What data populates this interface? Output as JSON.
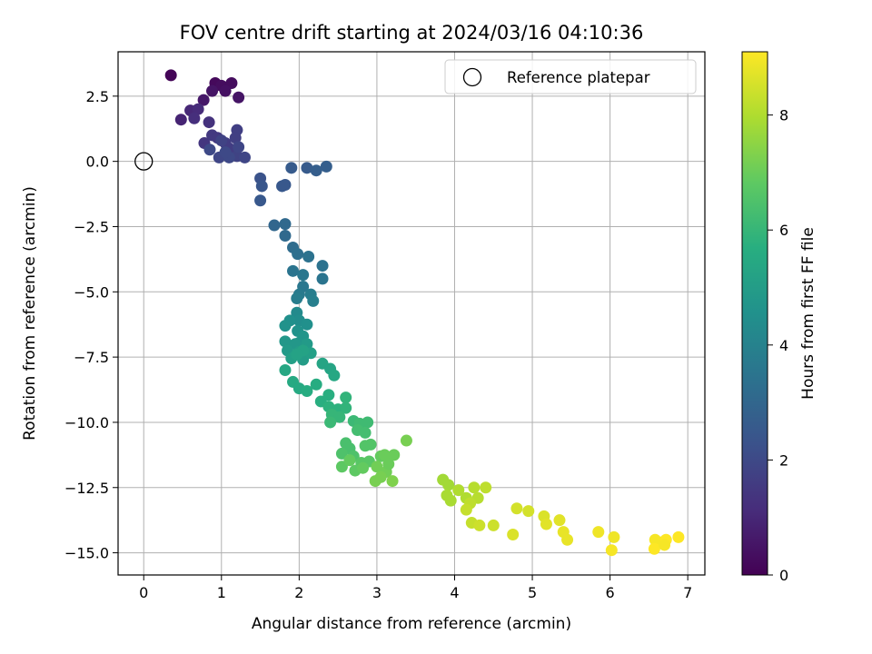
{
  "chart_data": {
    "type": "scatter",
    "title": "FOV centre drift starting at 2024/03/16 04:10:36",
    "xlabel": "Angular distance from reference (arcmin)",
    "ylabel": "Rotation from reference (arcmin)",
    "xlim": [
      -0.33,
      7.22
    ],
    "ylim": [
      -15.85,
      4.2
    ],
    "xticks": [
      0,
      1,
      2,
      3,
      4,
      5,
      6,
      7
    ],
    "xtick_labels": [
      "0",
      "1",
      "2",
      "3",
      "4",
      "5",
      "6",
      "7"
    ],
    "yticks": [
      2.5,
      0.0,
      -2.5,
      -5.0,
      -7.5,
      -10.0,
      -12.5,
      -15.0
    ],
    "ytick_labels": [
      "2.5",
      "0.0",
      "−2.5",
      "−5.0",
      "−7.5",
      "−10.0",
      "−12.5",
      "−15.0"
    ],
    "grid": true,
    "colormap": "viridis",
    "legend": {
      "placement": "upper right",
      "entries": [
        {
          "label": "Reference platepar",
          "marker": "open-circle"
        }
      ]
    },
    "reference_point": {
      "x": 0,
      "y": 0,
      "label": "Reference platepar"
    },
    "colorbar": {
      "label": "Hours from first FF file",
      "range": [
        0,
        9.1
      ],
      "ticks": [
        0,
        2,
        4,
        6,
        8
      ],
      "tick_labels": [
        "0",
        "2",
        "4",
        "6",
        "8"
      ]
    },
    "points": [
      [
        0.35,
        3.3,
        0.1
      ],
      [
        0.92,
        3.0,
        0.2
      ],
      [
        1.0,
        2.9,
        0.3
      ],
      [
        1.13,
        3.0,
        0.3
      ],
      [
        1.05,
        2.7,
        0.4
      ],
      [
        1.22,
        2.45,
        0.5
      ],
      [
        0.88,
        2.7,
        0.5
      ],
      [
        0.77,
        2.35,
        0.6
      ],
      [
        0.48,
        1.6,
        0.9
      ],
      [
        0.6,
        1.95,
        1.0
      ],
      [
        0.7,
        2.0,
        1.1
      ],
      [
        0.65,
        1.65,
        1.2
      ],
      [
        0.84,
        1.5,
        1.3
      ],
      [
        0.78,
        0.7,
        1.4
      ],
      [
        0.88,
        1.0,
        1.5
      ],
      [
        0.95,
        0.9,
        1.5
      ],
      [
        1.05,
        0.7,
        1.6
      ],
      [
        1.1,
        0.5,
        1.6
      ],
      [
        1.2,
        1.2,
        1.7
      ],
      [
        1.18,
        0.9,
        1.7
      ],
      [
        1.2,
        0.2,
        1.8
      ],
      [
        1.3,
        0.15,
        1.9
      ],
      [
        0.97,
        0.15,
        1.9
      ],
      [
        1.1,
        0.15,
        2.0
      ],
      [
        0.85,
        0.45,
        2.0
      ],
      [
        1.0,
        0.8,
        1.8
      ],
      [
        1.22,
        0.55,
        1.9
      ],
      [
        1.05,
        0.35,
        2.0
      ],
      [
        1.5,
        -0.65,
        2.3
      ],
      [
        1.52,
        -0.95,
        2.4
      ],
      [
        1.5,
        -1.5,
        2.5
      ],
      [
        1.78,
        -0.95,
        2.5
      ],
      [
        1.82,
        -0.9,
        2.5
      ],
      [
        1.9,
        -0.25,
        2.6
      ],
      [
        2.1,
        -0.25,
        2.6
      ],
      [
        2.22,
        -0.35,
        2.7
      ],
      [
        2.35,
        -0.2,
        2.7
      ],
      [
        1.68,
        -2.45,
        3.0
      ],
      [
        1.82,
        -2.4,
        3.1
      ],
      [
        1.82,
        -2.85,
        3.1
      ],
      [
        1.92,
        -3.3,
        3.2
      ],
      [
        1.98,
        -3.55,
        3.3
      ],
      [
        2.12,
        -3.65,
        3.4
      ],
      [
        2.3,
        -4.0,
        3.4
      ],
      [
        2.3,
        -4.5,
        3.5
      ],
      [
        1.92,
        -4.2,
        3.5
      ],
      [
        2.05,
        -4.35,
        3.6
      ],
      [
        2.05,
        -4.8,
        3.6
      ],
      [
        2.0,
        -5.1,
        3.7
      ],
      [
        2.15,
        -5.1,
        3.8
      ],
      [
        1.97,
        -5.25,
        3.8
      ],
      [
        2.18,
        -5.35,
        3.9
      ],
      [
        1.97,
        -5.8,
        4.3
      ],
      [
        2.0,
        -6.1,
        4.4
      ],
      [
        2.1,
        -6.25,
        4.5
      ],
      [
        1.88,
        -6.1,
        4.5
      ],
      [
        1.82,
        -6.3,
        4.6
      ],
      [
        1.98,
        -6.5,
        4.6
      ],
      [
        2.05,
        -6.7,
        4.7
      ],
      [
        2.0,
        -6.95,
        4.7
      ],
      [
        1.82,
        -6.9,
        4.8
      ],
      [
        1.95,
        -7.0,
        4.8
      ],
      [
        2.1,
        -7.0,
        4.9
      ],
      [
        1.85,
        -7.25,
        4.9
      ],
      [
        2.0,
        -7.3,
        5.0
      ],
      [
        2.05,
        -7.6,
        5.0
      ],
      [
        2.15,
        -7.35,
        5.1
      ],
      [
        1.9,
        -7.55,
        5.1
      ],
      [
        2.05,
        -7.25,
        5.2
      ],
      [
        1.97,
        -7.4,
        5.2
      ],
      [
        2.3,
        -7.75,
        5.3
      ],
      [
        2.4,
        -7.95,
        5.3
      ],
      [
        1.82,
        -8.0,
        5.4
      ],
      [
        2.45,
        -8.2,
        5.4
      ],
      [
        1.92,
        -8.45,
        5.5
      ],
      [
        2.0,
        -8.7,
        5.5
      ],
      [
        2.1,
        -8.8,
        5.6
      ],
      [
        2.22,
        -8.55,
        5.6
      ],
      [
        2.28,
        -9.2,
        5.7
      ],
      [
        2.38,
        -8.95,
        5.7
      ],
      [
        2.38,
        -9.4,
        5.8
      ],
      [
        2.5,
        -9.5,
        5.8
      ],
      [
        2.6,
        -9.05,
        5.9
      ],
      [
        2.6,
        -9.45,
        5.9
      ],
      [
        2.42,
        -9.7,
        6.0
      ],
      [
        2.52,
        -9.8,
        6.0
      ],
      [
        2.4,
        -10.0,
        6.1
      ],
      [
        2.7,
        -9.95,
        6.1
      ],
      [
        2.78,
        -10.05,
        6.2
      ],
      [
        2.88,
        -10.0,
        6.2
      ],
      [
        2.75,
        -10.3,
        6.3
      ],
      [
        2.85,
        -10.4,
        6.3
      ],
      [
        2.6,
        -10.8,
        6.4
      ],
      [
        2.65,
        -11.0,
        6.4
      ],
      [
        2.55,
        -11.2,
        6.5
      ],
      [
        2.7,
        -11.3,
        6.5
      ],
      [
        2.85,
        -10.9,
        6.6
      ],
      [
        2.92,
        -10.85,
        6.6
      ],
      [
        2.8,
        -11.55,
        6.7
      ],
      [
        2.9,
        -11.5,
        6.7
      ],
      [
        2.55,
        -11.7,
        6.8
      ],
      [
        2.72,
        -11.85,
        6.8
      ],
      [
        2.82,
        -11.75,
        6.9
      ],
      [
        3.05,
        -11.3,
        6.9
      ],
      [
        3.1,
        -11.25,
        7.0
      ],
      [
        3.22,
        -11.25,
        7.0
      ],
      [
        3.0,
        -11.7,
        7.1
      ],
      [
        3.12,
        -11.9,
        7.1
      ],
      [
        3.05,
        -12.1,
        7.2
      ],
      [
        2.98,
        -12.25,
        7.2
      ],
      [
        3.2,
        -12.25,
        7.3
      ],
      [
        3.38,
        -10.7,
        7.2
      ],
      [
        2.65,
        -11.45,
        6.9
      ],
      [
        3.15,
        -11.6,
        7.0
      ],
      [
        3.85,
        -12.2,
        7.8
      ],
      [
        3.92,
        -12.4,
        7.8
      ],
      [
        3.9,
        -12.8,
        7.9
      ],
      [
        3.95,
        -13.0,
        7.9
      ],
      [
        4.05,
        -12.6,
        8.0
      ],
      [
        4.15,
        -12.9,
        8.0
      ],
      [
        4.25,
        -12.5,
        8.1
      ],
      [
        4.3,
        -12.9,
        8.1
      ],
      [
        4.4,
        -12.5,
        8.2
      ],
      [
        4.2,
        -13.1,
        8.2
      ],
      [
        4.15,
        -13.35,
        8.3
      ],
      [
        4.22,
        -13.85,
        8.3
      ],
      [
        4.32,
        -13.95,
        8.4
      ],
      [
        4.5,
        -13.95,
        8.4
      ],
      [
        4.8,
        -13.3,
        8.5
      ],
      [
        4.95,
        -13.4,
        8.5
      ],
      [
        4.75,
        -14.3,
        8.6
      ],
      [
        5.15,
        -13.6,
        8.6
      ],
      [
        5.18,
        -13.9,
        8.7
      ],
      [
        5.35,
        -13.75,
        8.7
      ],
      [
        5.4,
        -14.2,
        8.8
      ],
      [
        5.45,
        -14.5,
        8.8
      ],
      [
        5.85,
        -14.2,
        8.9
      ],
      [
        6.05,
        -14.4,
        8.9
      ],
      [
        6.02,
        -14.9,
        9.0
      ],
      [
        6.58,
        -14.5,
        9.0
      ],
      [
        6.65,
        -14.6,
        9.0
      ],
      [
        6.72,
        -14.5,
        9.1
      ],
      [
        6.88,
        -14.4,
        9.1
      ],
      [
        6.57,
        -14.85,
        9.1
      ],
      [
        6.7,
        -14.7,
        9.0
      ]
    ]
  }
}
